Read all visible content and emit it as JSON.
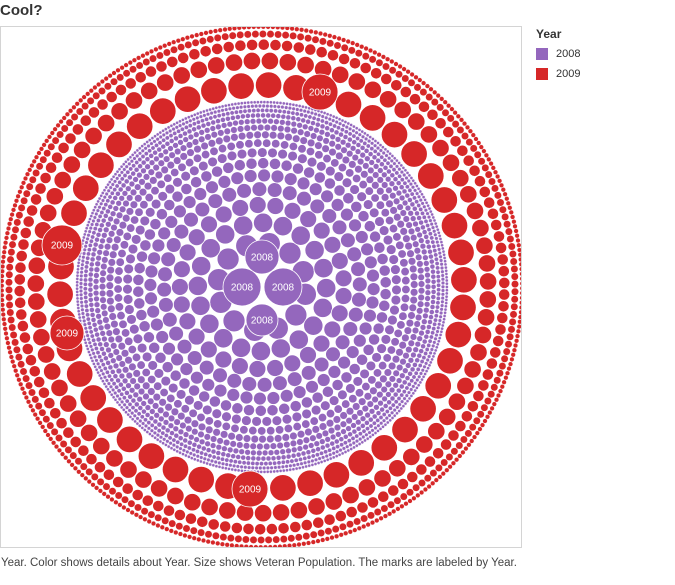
{
  "title": "Cool?",
  "legend": {
    "title": "Year",
    "items": [
      {
        "label": "2008",
        "color": "#9467bd"
      },
      {
        "label": "2009",
        "color": "#d62728"
      }
    ]
  },
  "caption": "Year.  Color shows details about Year.  Size shows Veteran Population.  The marks are labeled by Year.",
  "chart_data": {
    "type": "packed-bubble",
    "color_field": "Year",
    "size_field": "Veteran Population",
    "label_field": "Year",
    "series": [
      {
        "name": "2008",
        "color": "#9467bd",
        "labeled_marks": [
          "2008",
          "2008",
          "2008",
          "2008"
        ]
      },
      {
        "name": "2009",
        "color": "#d62728",
        "labeled_marks": [
          "2009",
          "2009",
          "2009",
          "2009"
        ]
      }
    ]
  }
}
